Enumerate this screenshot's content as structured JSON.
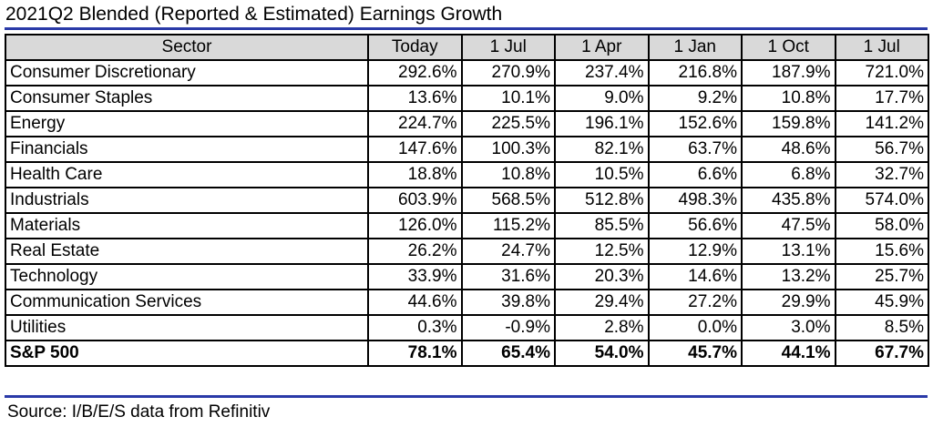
{
  "title": "2021Q2 Blended (Reported & Estimated) Earnings Growth",
  "colors": {
    "rule": "#2a3aa8",
    "header_bg": "#d9d9d9",
    "text": "#000000"
  },
  "table": {
    "headers": [
      "Sector",
      "Today",
      "1 Jul",
      "1 Apr",
      "1 Jan",
      "1 Oct",
      "1 Jul"
    ],
    "rows": [
      [
        "Consumer Discretionary",
        "292.6%",
        "270.9%",
        "237.4%",
        "216.8%",
        "187.9%",
        "721.0%"
      ],
      [
        "Consumer Staples",
        "13.6%",
        "10.1%",
        "9.0%",
        "9.2%",
        "10.8%",
        "17.7%"
      ],
      [
        "Energy",
        "224.7%",
        "225.5%",
        "196.1%",
        "152.6%",
        "159.8%",
        "141.2%"
      ],
      [
        "Financials",
        "147.6%",
        "100.3%",
        "82.1%",
        "63.7%",
        "48.6%",
        "56.7%"
      ],
      [
        "Health Care",
        "18.8%",
        "10.8%",
        "10.5%",
        "6.6%",
        "6.8%",
        "32.7%"
      ],
      [
        "Industrials",
        "603.9%",
        "568.5%",
        "512.8%",
        "498.3%",
        "435.8%",
        "574.0%"
      ],
      [
        "Materials",
        "126.0%",
        "115.2%",
        "85.5%",
        "56.6%",
        "47.5%",
        "58.0%"
      ],
      [
        "Real Estate",
        "26.2%",
        "24.7%",
        "12.5%",
        "12.9%",
        "13.1%",
        "15.6%"
      ],
      [
        "Technology",
        "33.9%",
        "31.6%",
        "20.3%",
        "14.6%",
        "13.2%",
        "25.7%"
      ],
      [
        "Communication Services",
        "44.6%",
        "39.8%",
        "29.4%",
        "27.2%",
        "29.9%",
        "45.9%"
      ],
      [
        "Utilities",
        "0.3%",
        "-0.9%",
        "2.8%",
        "0.0%",
        "3.0%",
        "8.5%"
      ]
    ],
    "total": [
      "S&P 500",
      "78.1%",
      "65.4%",
      "54.0%",
      "45.7%",
      "44.1%",
      "67.7%"
    ]
  },
  "source": "Source: I/B/E/S data from Refinitiv"
}
